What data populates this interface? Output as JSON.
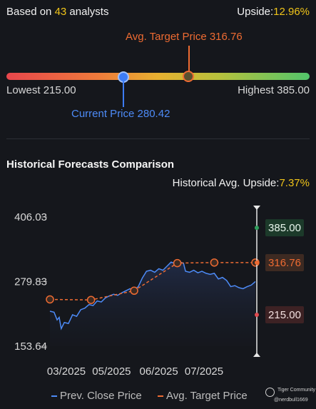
{
  "header": {
    "analysts_prefix": "Based on",
    "analysts_count": "43",
    "analysts_suffix": "analysts",
    "upside_label": "Upside:",
    "upside_value": "12.96%"
  },
  "range": {
    "avg_target_label": "Avg. Target Price 316.76",
    "lowest_label": "Lowest 215.00",
    "highest_label": "Highest 385.00",
    "current_label": "Current Price 280.42",
    "lowest": 215.0,
    "highest": 385.0,
    "current": 280.42,
    "avg_target": 316.76
  },
  "historical": {
    "title": "Historical Forecasts Comparison",
    "upside_label": "Historical Avg. Upside:",
    "upside_value": "7.37%"
  },
  "chart_data": {
    "type": "line",
    "y_ticks": [
      "406.03",
      "279.83",
      "153.64"
    ],
    "y_tick_values": [
      406.03,
      279.83,
      153.64
    ],
    "ylim": [
      153.64,
      406.03
    ],
    "x_ticks": [
      "03/2025",
      "05/2025",
      "06/2025",
      "07/2025"
    ],
    "x_tick_positions": [
      0.8,
      3.0,
      5.3,
      7.5
    ],
    "xlim": [
      0,
      10
    ],
    "series": [
      {
        "name": "Prev. Close Price",
        "color": "#4d8bf7",
        "points": [
          [
            0.0,
            222
          ],
          [
            0.2,
            220
          ],
          [
            0.35,
            205
          ],
          [
            0.45,
            210
          ],
          [
            0.55,
            188
          ],
          [
            0.7,
            200
          ],
          [
            0.9,
            198
          ],
          [
            1.1,
            215
          ],
          [
            1.3,
            212
          ],
          [
            1.5,
            225
          ],
          [
            1.7,
            228
          ],
          [
            1.9,
            235
          ],
          [
            2.1,
            233
          ],
          [
            2.3,
            242
          ],
          [
            2.5,
            240
          ],
          [
            2.7,
            248
          ],
          [
            2.9,
            252
          ],
          [
            3.1,
            255
          ],
          [
            3.3,
            253
          ],
          [
            3.5,
            258
          ],
          [
            3.7,
            262
          ],
          [
            3.9,
            266
          ],
          [
            4.1,
            263
          ],
          [
            4.3,
            270
          ],
          [
            4.5,
            287
          ],
          [
            4.7,
            300
          ],
          [
            4.9,
            302
          ],
          [
            5.1,
            298
          ],
          [
            5.3,
            305
          ],
          [
            5.5,
            302
          ],
          [
            5.7,
            310
          ],
          [
            5.9,
            318
          ],
          [
            6.1,
            315
          ],
          [
            6.3,
            318
          ],
          [
            6.5,
            316
          ],
          [
            6.6,
            300
          ],
          [
            6.8,
            298
          ],
          [
            7.0,
            302
          ],
          [
            7.2,
            297
          ],
          [
            7.4,
            300
          ],
          [
            7.6,
            296
          ],
          [
            7.8,
            294
          ],
          [
            8.0,
            296
          ],
          [
            8.2,
            285
          ],
          [
            8.4,
            288
          ],
          [
            8.6,
            282
          ],
          [
            8.8,
            270
          ],
          [
            9.0,
            272
          ],
          [
            9.2,
            268
          ],
          [
            9.4,
            266
          ],
          [
            9.6,
            270
          ],
          [
            9.8,
            273
          ],
          [
            10.0,
            280
          ]
        ]
      },
      {
        "name": "Avg. Target Price",
        "color": "#ee6b32",
        "points": [
          [
            0.0,
            245
          ],
          [
            2.0,
            244
          ],
          [
            4.1,
            262
          ],
          [
            6.2,
            316
          ],
          [
            8.0,
            317
          ],
          [
            10.0,
            317
          ]
        ]
      }
    ],
    "end_labels": [
      {
        "label": "385.00",
        "value": 385.0,
        "color": "#2f9e5c",
        "bg": "#1c3a2a"
      },
      {
        "label": "316.76",
        "value": 316.76,
        "color": "#ee6b32",
        "bg": "#3d2a22"
      },
      {
        "label": "215.00",
        "value": 215.0,
        "color": "#e0494f",
        "bg": "#3d2224"
      }
    ],
    "legend": [
      "Prev. Close Price",
      "Avg. Target Price"
    ]
  },
  "watermark": {
    "name": "Tiger Community",
    "user": "@nerdbull1669"
  }
}
